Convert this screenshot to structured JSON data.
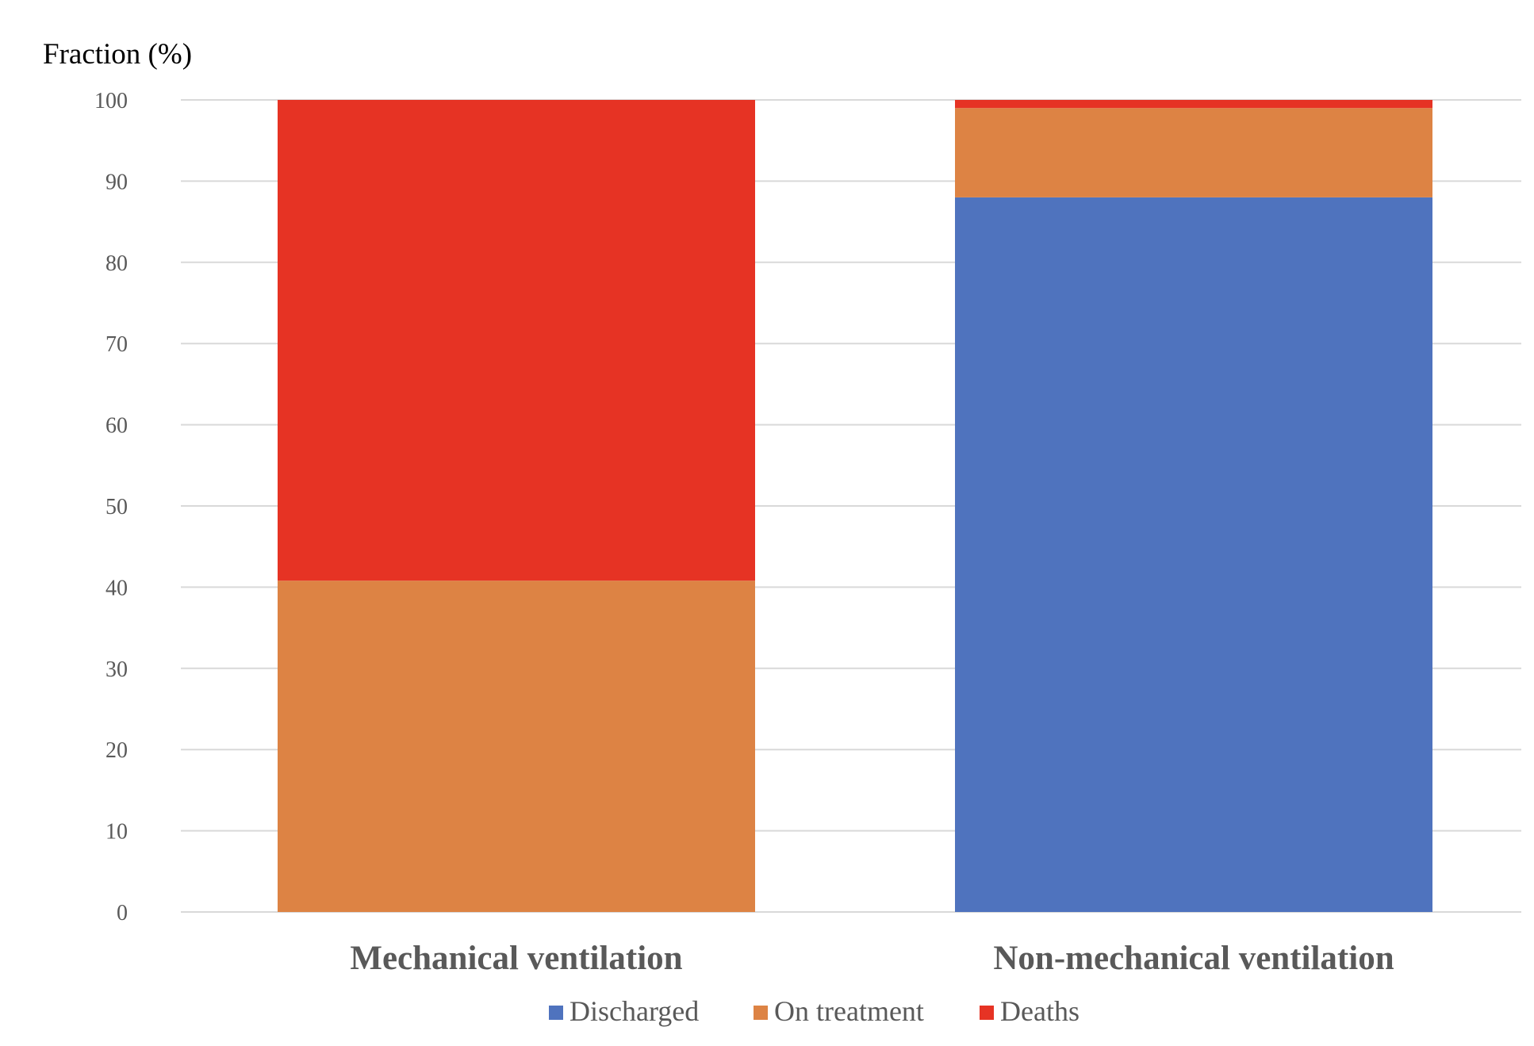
{
  "chart_data": {
    "type": "bar",
    "stacked": true,
    "title": "",
    "xlabel": "",
    "ylabel": "Fraction (%)",
    "ylim": [
      0,
      100
    ],
    "yticks": [
      0,
      10,
      20,
      30,
      40,
      50,
      60,
      70,
      80,
      90,
      100
    ],
    "grid": true,
    "legend_position": "bottom",
    "categories": [
      "Mechanical ventilation",
      "Non-mechanical ventilation"
    ],
    "series": [
      {
        "name": "Discharged",
        "color": "#4f73be",
        "values": [
          0,
          88
        ]
      },
      {
        "name": "On treatment",
        "color": "#dd8344",
        "values": [
          40.8,
          11
        ]
      },
      {
        "name": "Deaths",
        "color": "#e63324",
        "values": [
          59.2,
          1
        ]
      }
    ]
  }
}
